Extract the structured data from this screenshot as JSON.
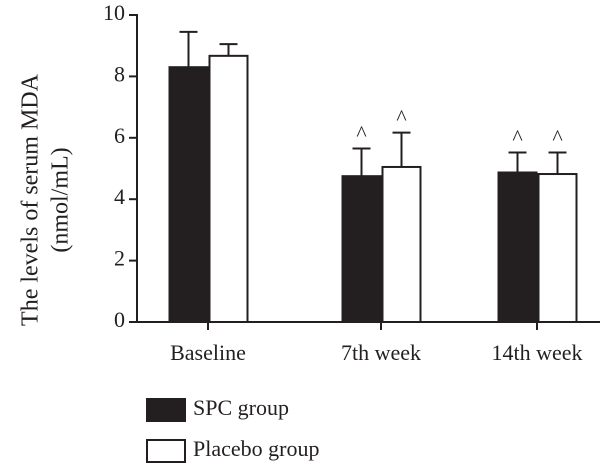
{
  "chart_data": {
    "type": "bar",
    "categories": [
      "Baseline",
      "7th week",
      "14th week"
    ],
    "series": [
      {
        "name": "SPC group",
        "color": "#231f20",
        "values": [
          8.3,
          4.75,
          4.87
        ],
        "error": [
          1.15,
          0.9,
          0.65
        ],
        "annotations": [
          "",
          "^",
          "^"
        ]
      },
      {
        "name": "Placebo group",
        "color": "#ffffff",
        "values": [
          8.67,
          5.05,
          4.82
        ],
        "error": [
          0.38,
          1.12,
          0.7
        ],
        "annotations": [
          "",
          "^",
          "^"
        ]
      }
    ],
    "ylabel_lines": [
      "The levels of serum MDA",
      "(nmol/mL)"
    ],
    "ylim": [
      0,
      10
    ],
    "yticks": [
      "0",
      "2",
      "4",
      "6",
      "8",
      "10"
    ],
    "grid": false,
    "legend_position": "bottom-left"
  }
}
